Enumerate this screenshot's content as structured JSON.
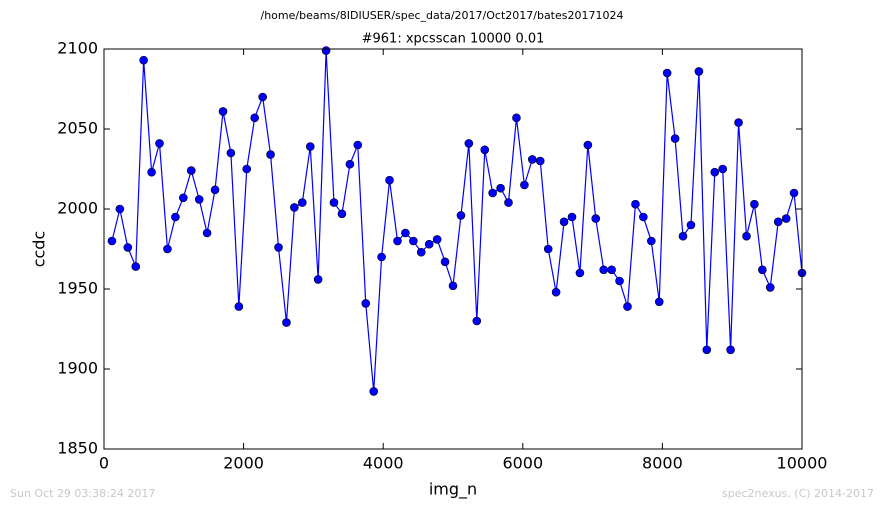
{
  "chart_data": {
    "type": "line",
    "suptitle": "/home/beams/8IDIUSER/spec_data/2017/Oct2017/bates20171024",
    "title": "#961: xpcsscan 10000 0.01",
    "xlabel": "img_n",
    "ylabel": "ccdc",
    "footer_left": "Sun Oct 29 03:38:24 2017",
    "footer_right": "spec2nexus, (C) 2014-2017",
    "color": "#0000ff",
    "marker": "circle",
    "xlim": [
      0,
      10000
    ],
    "xticks": [
      0,
      2000,
      4000,
      6000,
      8000,
      10000
    ],
    "ylim": [
      1850,
      2100
    ],
    "yticks": [
      1850,
      1900,
      1950,
      2000,
      2050,
      2100
    ],
    "x": [
      114,
      227,
      341,
      455,
      568,
      682,
      795,
      909,
      1023,
      1136,
      1250,
      1364,
      1477,
      1591,
      1705,
      1818,
      1932,
      2045,
      2159,
      2273,
      2386,
      2500,
      2614,
      2727,
      2841,
      2955,
      3068,
      3182,
      3295,
      3409,
      3523,
      3636,
      3750,
      3864,
      3977,
      4091,
      4205,
      4318,
      4432,
      4545,
      4659,
      4773,
      4886,
      5000,
      5114,
      5227,
      5341,
      5455,
      5568,
      5682,
      5795,
      5909,
      6023,
      6136,
      6250,
      6364,
      6477,
      6591,
      6705,
      6818,
      6932,
      7045,
      7159,
      7273,
      7386,
      7500,
      7614,
      7727,
      7841,
      7955,
      8068,
      8182,
      8295,
      8409,
      8523,
      8636,
      8750,
      8864,
      8977,
      9091,
      9205,
      9318,
      9432,
      9545,
      9659,
      9773,
      9886,
      10000
    ],
    "values": [
      1980,
      2000,
      1976,
      1964,
      2093,
      2023,
      2041,
      1975,
      1995,
      2007,
      2024,
      2006,
      1985,
      2012,
      2061,
      2035,
      1939,
      2025,
      2057,
      2070,
      2034,
      1976,
      1929,
      2001,
      2004,
      2039,
      1956,
      2099,
      2004,
      1997,
      2028,
      2040,
      1941,
      1886,
      1970,
      2018,
      1980,
      1985,
      1980,
      1973,
      1978,
      1981,
      1967,
      1952,
      1996,
      2041,
      1930,
      2037,
      2010,
      2013,
      2004,
      2057,
      2015,
      2031,
      2030,
      1975,
      1948,
      1992,
      1995,
      1960,
      2040,
      1994,
      1962,
      1962,
      1955,
      1939,
      2003,
      1995,
      1980,
      1942,
      2085,
      2044,
      1983,
      1990,
      2086,
      1912,
      2023,
      2025,
      1912,
      2054,
      1983,
      2003,
      1962,
      1951,
      1992,
      1994,
      2010,
      1960
    ]
  }
}
